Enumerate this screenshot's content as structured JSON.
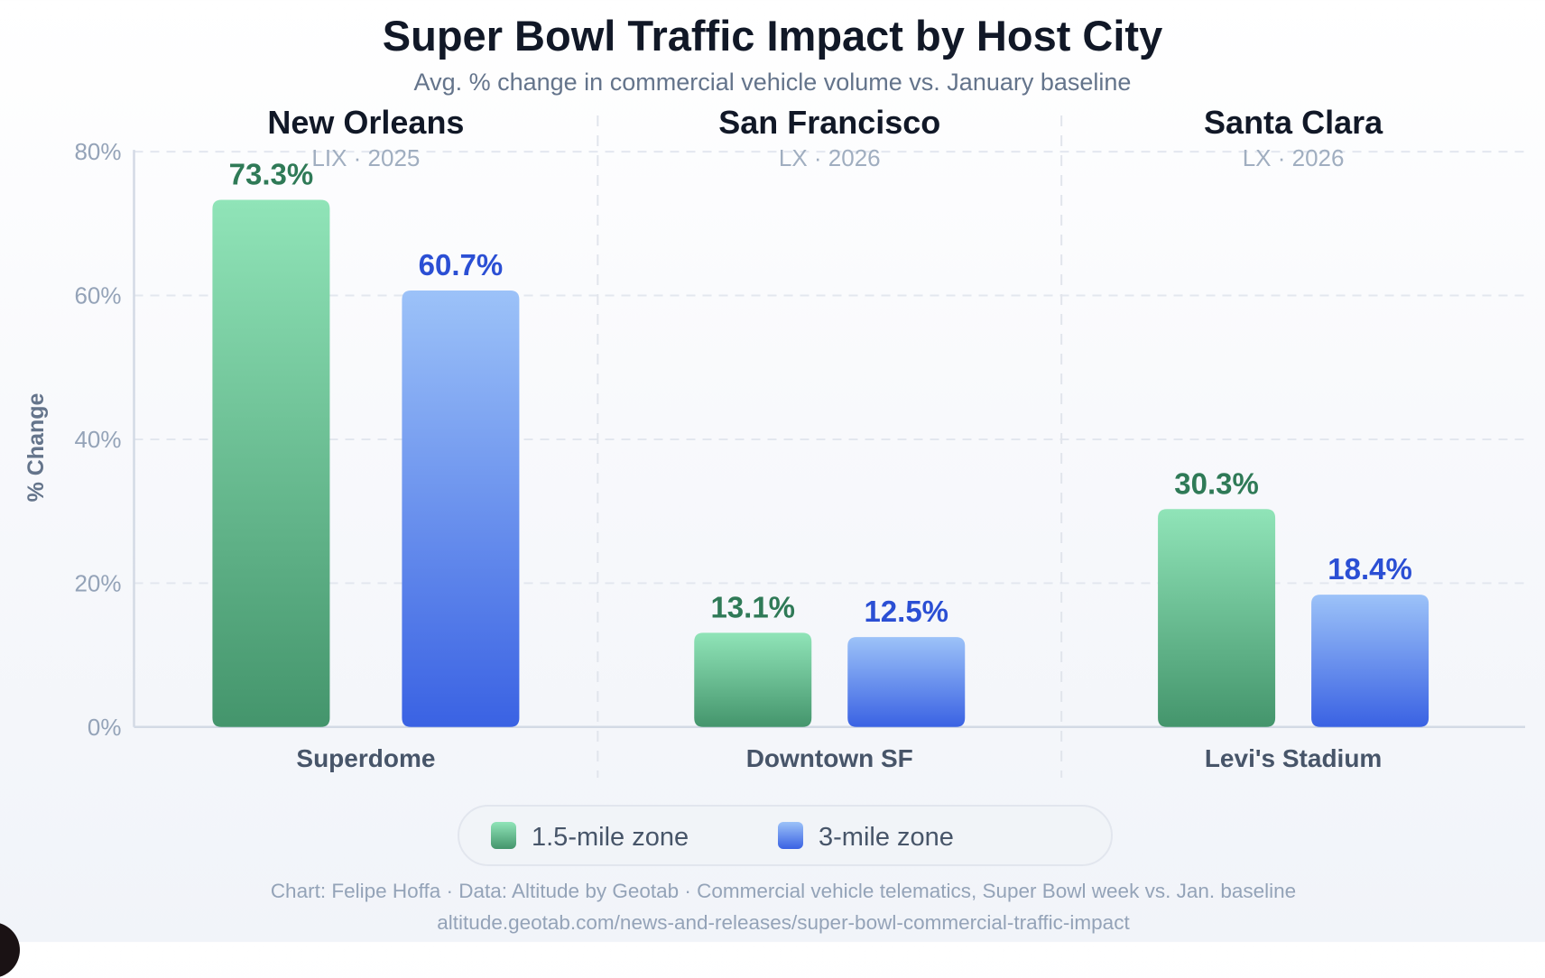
{
  "chart_data": {
    "type": "bar",
    "title": "Super Bowl Traffic Impact by Host City",
    "subtitle": "Avg. % change in commercial vehicle volume vs. January baseline",
    "ylabel": "% Change",
    "xlabel": "",
    "ylim": [
      0,
      80
    ],
    "yticks": [
      0,
      20,
      40,
      60,
      80
    ],
    "ytick_labels": [
      "0%",
      "20%",
      "40%",
      "60%",
      "80%"
    ],
    "grid": true,
    "groups": [
      {
        "city": "New Orleans",
        "event": "LIX · 2025",
        "category": "Superdome"
      },
      {
        "city": "San Francisco",
        "event": "LX · 2026",
        "category": "Downtown SF"
      },
      {
        "city": "Santa Clara",
        "event": "LX · 2026",
        "category": "Levi's Stadium"
      }
    ],
    "categories": [
      "Superdome",
      "Downtown SF",
      "Levi's Stadium"
    ],
    "series": [
      {
        "name": "1.5-mile zone",
        "values": [
          73.3,
          13.1,
          30.3
        ],
        "labels": [
          "73.3%",
          "13.1%",
          "30.3%"
        ],
        "color_top": "#90e4b8",
        "color_bottom": "#44956c",
        "label_color": "#2f7a57"
      },
      {
        "name": "3-mile zone",
        "values": [
          60.7,
          12.5,
          18.4
        ],
        "labels": [
          "60.7%",
          "12.5%",
          "18.4%"
        ],
        "color_top": "#9cc2f8",
        "color_bottom": "#3a62e3",
        "label_color": "#2b4fd4"
      }
    ],
    "legend": {
      "position": "bottom-center",
      "entries": [
        "1.5-mile zone",
        "3-mile zone"
      ]
    }
  },
  "footer": {
    "credit": "Chart: Felipe Hoffa · Data: Altitude by Geotab · Commercial vehicle telematics, Super Bowl week vs. Jan. baseline",
    "source_url": "altitude.geotab.com/news-and-releases/super-bowl-commercial-traffic-impact"
  }
}
